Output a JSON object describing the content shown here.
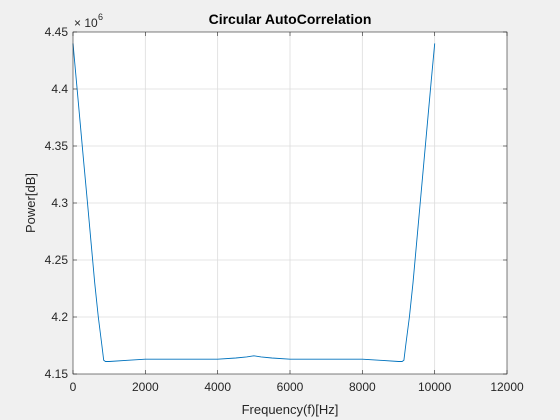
{
  "chart_data": {
    "type": "line",
    "title": "Circular AutoCorrelation",
    "xlabel": "Frequency(f)[Hz]",
    "ylabel": "Power[dB]",
    "y_exponent_base": "× 10",
    "y_exponent_power": "6",
    "xlim": [
      0,
      12000
    ],
    "ylim": [
      4.15,
      4.45
    ],
    "xticks": [
      0,
      2000,
      4000,
      6000,
      8000,
      10000,
      12000
    ],
    "xtick_labels": [
      "0",
      "2000",
      "4000",
      "6000",
      "8000",
      "10000",
      "12000"
    ],
    "yticks": [
      4.15,
      4.2,
      4.25,
      4.3,
      4.35,
      4.4,
      4.45
    ],
    "ytick_labels": [
      "4.15",
      "4.2",
      "4.25",
      "4.3",
      "4.35",
      "4.4",
      "4.45"
    ],
    "grid": true,
    "line_color": "#0072bd",
    "series": [
      {
        "x": [
          0,
          100,
          200,
          300,
          400,
          500,
          600,
          700,
          800,
          850,
          900,
          1000,
          1500,
          2000,
          2500,
          3000,
          3500,
          4000,
          4500,
          4800,
          5000,
          5200,
          5500,
          6000,
          6500,
          7000,
          7500,
          8000,
          8500,
          9000,
          9100,
          9150,
          9200,
          9300,
          9400,
          9500,
          9600,
          9700,
          9800,
          9900,
          10000
        ],
        "y": [
          4.44,
          4.405,
          4.37,
          4.335,
          4.3,
          4.265,
          4.23,
          4.2,
          4.175,
          4.162,
          4.161,
          4.161,
          4.162,
          4.163,
          4.163,
          4.163,
          4.163,
          4.163,
          4.164,
          4.165,
          4.166,
          4.165,
          4.164,
          4.163,
          4.163,
          4.163,
          4.163,
          4.163,
          4.162,
          4.161,
          4.161,
          4.162,
          4.175,
          4.2,
          4.23,
          4.265,
          4.3,
          4.335,
          4.37,
          4.405,
          4.44
        ]
      }
    ]
  }
}
